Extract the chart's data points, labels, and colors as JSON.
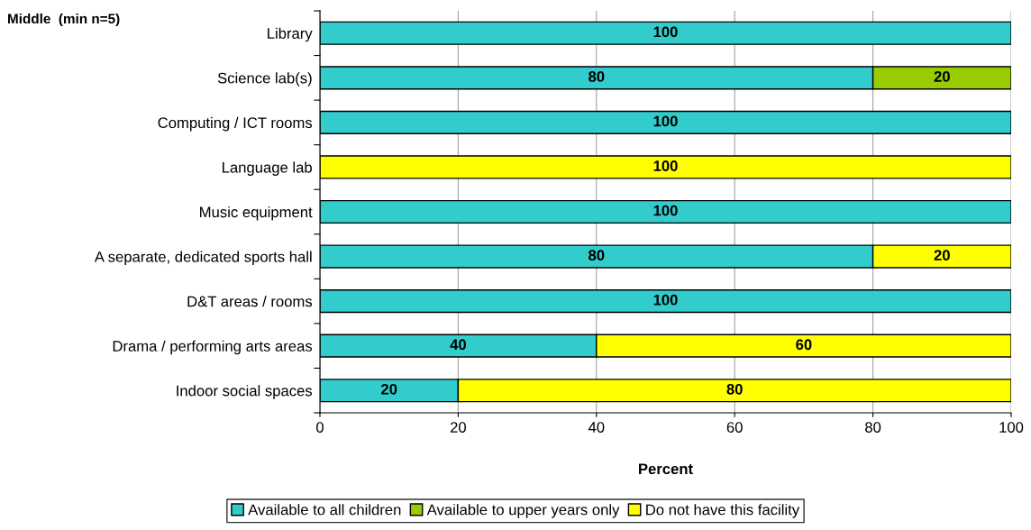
{
  "chart_data": {
    "type": "bar",
    "orientation": "horizontal",
    "stacked": true,
    "title": "Middle  (min n=5)",
    "xlabel": "Percent",
    "categories": [
      "Library",
      "Science lab(s)",
      "Computing / ICT rooms",
      "Language lab",
      "Music equipment",
      "A separate, dedicated sports hall",
      "D&T areas / rooms",
      "Drama / performing arts areas",
      "Indoor social spaces"
    ],
    "series": [
      {
        "name": "Available to all children",
        "color": "#33cccc",
        "values": [
          100,
          80,
          100,
          null,
          100,
          80,
          100,
          40,
          20
        ]
      },
      {
        "name": "Available to upper years only",
        "color": "#99cc00",
        "values": [
          null,
          20,
          null,
          null,
          null,
          null,
          null,
          null,
          null
        ]
      },
      {
        "name": "Do not have this facility",
        "color": "#ffff00",
        "values": [
          null,
          null,
          null,
          100,
          null,
          20,
          null,
          60,
          80
        ]
      }
    ],
    "xlim": [
      0,
      100
    ],
    "xticks": [
      0,
      20,
      40,
      60,
      80,
      100
    ],
    "grid": "x",
    "legend": "bottom",
    "data_labels": true
  }
}
